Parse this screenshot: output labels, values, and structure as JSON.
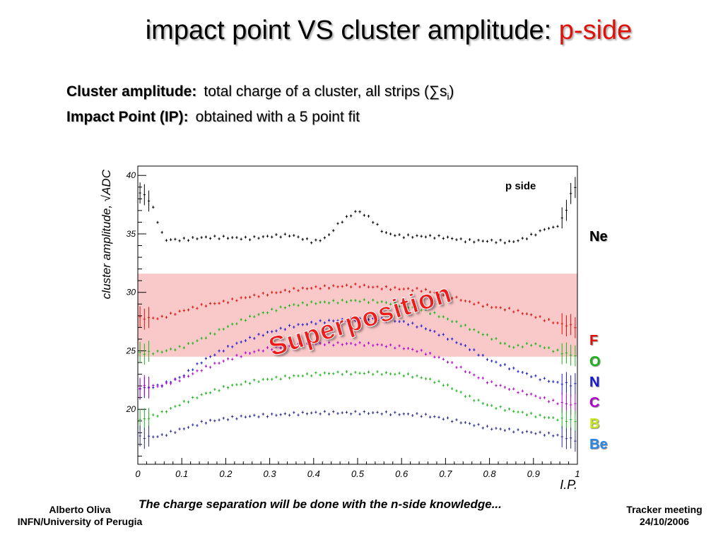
{
  "slide": {
    "title_main": "impact point VS cluster amplitude:",
    "title_accent": "p-side",
    "def1_label": "Cluster amplitude:",
    "def1_text": "total charge of a cluster, all strips (∑s",
    "def1_sub": "i",
    "def1_close": ")",
    "def2_label": "Impact Point (IP):",
    "def2_text": "obtained with a 5 point fit",
    "footer_left_line1": "Alberto Oliva",
    "footer_left_line2": "INFN/University of Perugia",
    "footer_right_line1": "Tracker meeting",
    "footer_right_line2": "24/10/2006",
    "note": "The charge separation will be done with the n-side knowledge...",
    "superposition_label": "Superposition",
    "superposition_band": [
      24.5,
      31.6
    ],
    "highlight_color": "#f9c9c9"
  },
  "element_labels": [
    {
      "text": "Ne",
      "color": "#000000"
    },
    {
      "text": "F",
      "color": "#e0100a"
    },
    {
      "text": "O",
      "color": "#19b419"
    },
    {
      "text": "N",
      "color": "#1a1ad0"
    },
    {
      "text": "C",
      "color": "#b000d0"
    },
    {
      "text": "B",
      "color": "#c8e61e"
    },
    {
      "text": "Be",
      "color": "#2b86e8"
    }
  ],
  "chart_data": {
    "type": "scatter",
    "title": "p side",
    "xlabel": "I.P.",
    "ylabel": "cluster amplitude, √ADC",
    "xlim": [
      0,
      1
    ],
    "ylim": [
      15.3,
      40.8
    ],
    "xticks": [
      "0",
      "0.1",
      "0.2",
      "0.3",
      "0.4",
      "0.5",
      "0.6",
      "0.7",
      "0.8",
      "0.9",
      "1"
    ],
    "yticks": [
      "20",
      "25",
      "30",
      "35",
      "40"
    ],
    "grid": false,
    "series": [
      {
        "name": "Ne",
        "color": "#000000",
        "x": [
          0.01,
          0.03,
          0.06,
          0.1,
          0.15,
          0.2,
          0.25,
          0.3,
          0.35,
          0.4,
          0.43,
          0.46,
          0.48,
          0.5,
          0.53,
          0.56,
          0.6,
          0.65,
          0.7,
          0.75,
          0.8,
          0.85,
          0.88,
          0.91,
          0.93,
          0.95,
          0.97,
          0.99
        ],
        "y": [
          38.5,
          37.7,
          34.5,
          34.5,
          34.7,
          34.7,
          34.6,
          34.8,
          34.9,
          34.3,
          34.7,
          36.0,
          36.5,
          37.0,
          36.3,
          35.1,
          34.8,
          34.8,
          34.7,
          34.4,
          34.4,
          34.3,
          34.6,
          35.1,
          35.5,
          35.5,
          36.5,
          39.0
        ]
      },
      {
        "name": "F",
        "color": "#e0100a",
        "x": [
          0.01,
          0.05,
          0.1,
          0.15,
          0.2,
          0.25,
          0.3,
          0.35,
          0.4,
          0.45,
          0.5,
          0.55,
          0.6,
          0.65,
          0.7,
          0.75,
          0.8,
          0.85,
          0.9,
          0.95,
          0.99
        ],
        "y": [
          27.8,
          27.8,
          28.4,
          28.9,
          29.2,
          29.6,
          29.9,
          30.2,
          30.4,
          30.5,
          30.6,
          30.4,
          30.3,
          30.2,
          29.8,
          29.2,
          28.8,
          28.5,
          28.0,
          27.4,
          27.1
        ]
      },
      {
        "name": "O",
        "color": "#19b419",
        "x": [
          0.01,
          0.05,
          0.1,
          0.15,
          0.2,
          0.25,
          0.3,
          0.35,
          0.4,
          0.45,
          0.5,
          0.55,
          0.6,
          0.65,
          0.7,
          0.75,
          0.8,
          0.85,
          0.9,
          0.95,
          0.99
        ],
        "y": [
          24.8,
          24.9,
          25.3,
          26.1,
          27.0,
          27.8,
          28.4,
          28.9,
          29.1,
          29.2,
          29.3,
          29.2,
          28.9,
          28.5,
          27.8,
          27.0,
          26.2,
          25.3,
          25.6,
          25.0,
          24.6
        ]
      },
      {
        "name": "N",
        "color": "#1a1ad0",
        "x": [
          0.01,
          0.05,
          0.1,
          0.15,
          0.2,
          0.25,
          0.3,
          0.35,
          0.4,
          0.45,
          0.5,
          0.55,
          0.6,
          0.65,
          0.7,
          0.75,
          0.8,
          0.85,
          0.9,
          0.95,
          0.99
        ],
        "y": [
          21.8,
          22.0,
          22.8,
          24.2,
          25.2,
          26.0,
          26.6,
          27.1,
          27.4,
          27.6,
          27.7,
          27.7,
          27.5,
          27.0,
          26.2,
          25.3,
          24.2,
          23.5,
          22.8,
          22.3,
          22.1
        ]
      },
      {
        "name": "C",
        "color": "#b000d0",
        "x": [
          0.01,
          0.05,
          0.1,
          0.15,
          0.2,
          0.25,
          0.3,
          0.35,
          0.4,
          0.45,
          0.5,
          0.55,
          0.6,
          0.65,
          0.7,
          0.75,
          0.8,
          0.85,
          0.9,
          0.95,
          0.99
        ],
        "y": [
          21.9,
          22.0,
          22.6,
          23.5,
          24.2,
          24.8,
          25.2,
          25.4,
          25.6,
          25.6,
          25.6,
          25.5,
          25.3,
          24.9,
          24.2,
          23.2,
          22.3,
          21.7,
          21.2,
          20.6,
          20.4
        ]
      },
      {
        "name": "B",
        "color": "#19b419",
        "x": [
          0.01,
          0.05,
          0.1,
          0.15,
          0.2,
          0.25,
          0.3,
          0.35,
          0.4,
          0.45,
          0.5,
          0.55,
          0.6,
          0.65,
          0.7,
          0.75,
          0.8,
          0.85,
          0.9,
          0.95,
          0.99
        ],
        "y": [
          19.1,
          19.6,
          20.5,
          21.3,
          21.9,
          22.3,
          22.6,
          22.8,
          23.0,
          23.1,
          23.1,
          23.1,
          23.0,
          22.7,
          22.1,
          21.1,
          20.3,
          19.9,
          19.5,
          19.2,
          19.0
        ]
      },
      {
        "name": "Be",
        "color": "#2a2a90",
        "x": [
          0.01,
          0.05,
          0.1,
          0.15,
          0.2,
          0.25,
          0.3,
          0.35,
          0.4,
          0.45,
          0.5,
          0.55,
          0.6,
          0.65,
          0.7,
          0.75,
          0.8,
          0.85,
          0.9,
          0.95,
          0.99
        ],
        "y": [
          17.6,
          17.7,
          18.3,
          18.9,
          19.2,
          19.4,
          19.5,
          19.6,
          19.7,
          19.7,
          19.7,
          19.7,
          19.6,
          19.5,
          19.2,
          18.8,
          18.4,
          18.2,
          18.0,
          17.8,
          17.4
        ]
      }
    ]
  }
}
